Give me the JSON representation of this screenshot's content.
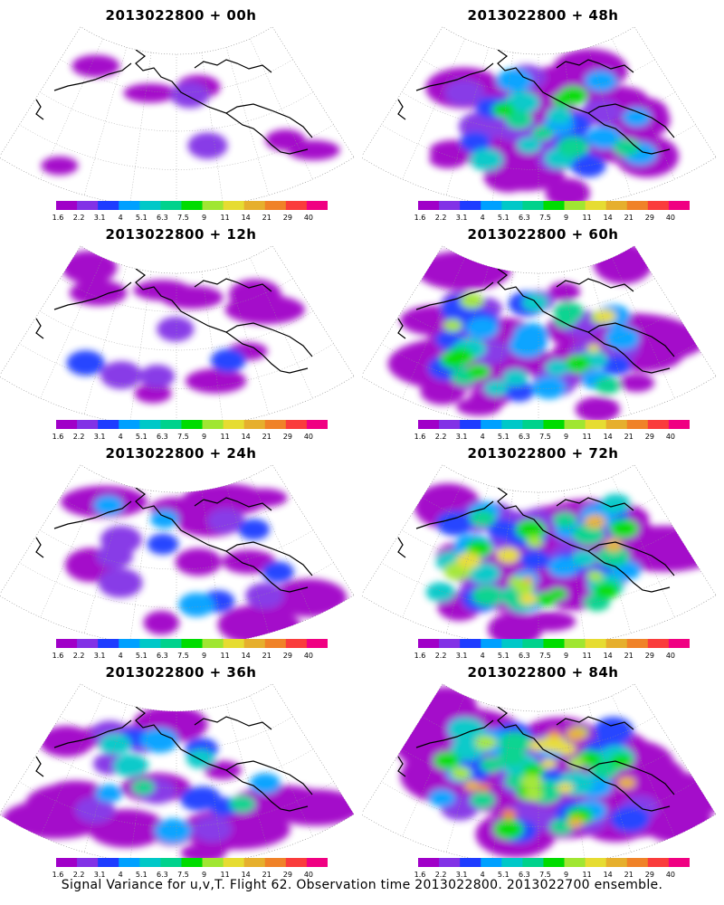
{
  "figure": {
    "caption": "Signal Variance for u,v,T. Flight 62. Observation time 2013022800. 2013022700 ensemble."
  },
  "colorbar": {
    "labels": [
      "1.6",
      "2.2",
      "3.1",
      "4",
      "5.1",
      "6.3",
      "7.5",
      "9",
      "11",
      "14",
      "21",
      "29",
      "40"
    ],
    "colors": [
      "#a000c8",
      "#8232e6",
      "#1e3cff",
      "#00a0ff",
      "#00c8c8",
      "#00d28c",
      "#00dc00",
      "#a0e632",
      "#e6dc32",
      "#e6af2d",
      "#f08228",
      "#fa3c3c",
      "#f00082"
    ]
  },
  "panels": [
    {
      "title": "2013022800  +  00h",
      "level": 0
    },
    {
      "title": "2013022800  +  48h",
      "level": 4
    },
    {
      "title": "2013022800  +  12h",
      "level": 1
    },
    {
      "title": "2013022800  +  60h",
      "level": 5
    },
    {
      "title": "2013022800  +  24h",
      "level": 2
    },
    {
      "title": "2013022800  +  72h",
      "level": 6
    },
    {
      "title": "2013022800  +  36h",
      "level": 3
    },
    {
      "title": "2013022800  +  84h",
      "level": 7
    }
  ]
}
